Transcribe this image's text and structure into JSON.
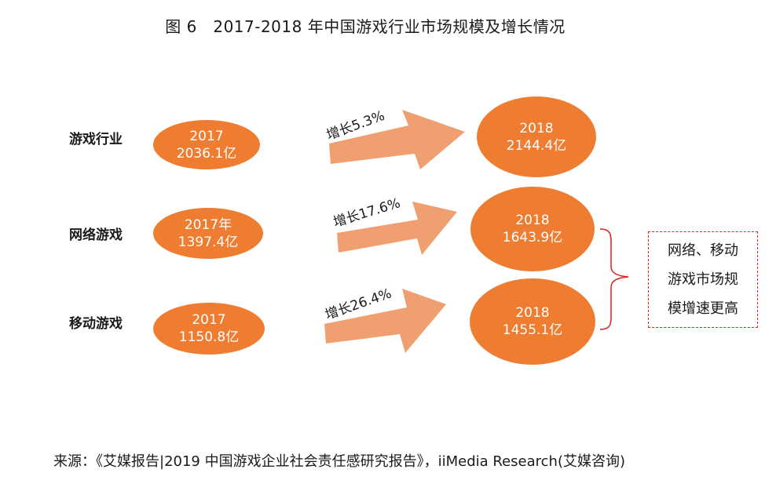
{
  "title": "图 6　2017-2018 年中国游戏行业市场规模及增长情况",
  "rows": [
    {
      "label": "游戏行业",
      "y2017_year": "2017",
      "y2017_value": "2036.1亿",
      "growth": "增长5.3%",
      "y2018_year": "2018",
      "y2018_value": "2144.4亿"
    },
    {
      "label": "网络游戏",
      "y2017_year": "2017年",
      "y2017_value": "1397.4亿",
      "growth": "增长17.6%",
      "y2018_year": "2018",
      "y2018_value": "1643.9亿"
    },
    {
      "label": "移动游戏",
      "y2017_year": "2017",
      "y2017_value": "1150.8亿",
      "growth": "增长26.4%",
      "y2018_year": "2018",
      "y2018_value": "1455.1亿"
    }
  ],
  "note": {
    "line1": "网络、移动",
    "line2": "游戏市场规",
    "line3": "模增速更高"
  },
  "source": "来源：《艾媒报告|2019 中国游戏企业社会责任感研究报告》，iiMedia Research(艾媒咨询)",
  "colors": {
    "ellipse": "#ee7d31",
    "arrow": "#f0a070",
    "note_border": "#e02020"
  }
}
